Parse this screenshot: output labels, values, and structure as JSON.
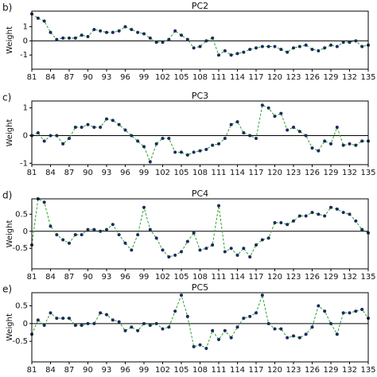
{
  "chart_data": [
    {
      "type": "line",
      "panel_label": "b)",
      "title": "PC2",
      "y_label": "Weight",
      "x": [
        81,
        82,
        83,
        84,
        85,
        86,
        87,
        88,
        89,
        90,
        91,
        92,
        93,
        94,
        95,
        96,
        97,
        98,
        99,
        100,
        101,
        102,
        103,
        104,
        105,
        106,
        107,
        108,
        109,
        110,
        111,
        112,
        113,
        114,
        115,
        116,
        117,
        118,
        119,
        120,
        121,
        122,
        123,
        124,
        125,
        126,
        127,
        128,
        129,
        130,
        131,
        132,
        133,
        134,
        135
      ],
      "series": [
        {
          "values": [
            1.9,
            1.6,
            1.4,
            0.6,
            0.1,
            0.2,
            0.2,
            0.2,
            0.4,
            0.3,
            0.8,
            0.7,
            0.6,
            0.6,
            0.7,
            1.0,
            0.8,
            0.6,
            0.5,
            0.2,
            -0.1,
            -0.1,
            0.1,
            0.7,
            0.4,
            0.1,
            -0.5,
            -0.4,
            0.0,
            0.2,
            -1.0,
            -0.7,
            -1.0,
            -0.9,
            -0.8,
            -0.6,
            -0.5,
            -0.4,
            -0.4,
            -0.4,
            -0.6,
            -0.8,
            -0.5,
            -0.4,
            -0.3,
            -0.6,
            -0.7,
            -0.5,
            -0.3,
            -0.4,
            -0.1,
            -0.1,
            0.0,
            -0.4,
            -0.3
          ],
          "color": "#2ca02c",
          "marker_color": "#1a2b5c"
        }
      ],
      "xlim": [
        81,
        135
      ],
      "xticks": [
        81,
        84,
        87,
        90,
        93,
        96,
        99,
        102,
        105,
        108,
        111,
        114,
        117,
        120,
        123,
        126,
        129,
        132,
        135
      ],
      "ylim": [
        -2,
        2.1
      ],
      "yticks": [
        -1,
        0,
        1
      ],
      "hline": 0
    },
    {
      "type": "line",
      "panel_label": "c)",
      "title": "PC3",
      "y_label": "Weight",
      "x": [
        81,
        82,
        83,
        84,
        85,
        86,
        87,
        88,
        89,
        90,
        91,
        92,
        93,
        94,
        95,
        96,
        97,
        98,
        99,
        100,
        101,
        102,
        103,
        104,
        105,
        106,
        107,
        108,
        109,
        110,
        111,
        112,
        113,
        114,
        115,
        116,
        117,
        118,
        119,
        120,
        121,
        122,
        123,
        124,
        125,
        126,
        127,
        128,
        129,
        130,
        131,
        132,
        133,
        134,
        135
      ],
      "series": [
        {
          "values": [
            0.0,
            0.1,
            -0.2,
            0.0,
            0.0,
            -0.3,
            -0.1,
            0.3,
            0.3,
            0.4,
            0.3,
            0.3,
            0.6,
            0.55,
            0.4,
            0.2,
            0.0,
            -0.2,
            -0.4,
            -0.95,
            -0.3,
            -0.1,
            -0.1,
            -0.6,
            -0.6,
            -0.7,
            -0.6,
            -0.55,
            -0.5,
            -0.35,
            -0.3,
            -0.1,
            0.4,
            0.5,
            0.1,
            0.0,
            -0.1,
            1.1,
            1.0,
            0.7,
            0.8,
            0.2,
            0.3,
            0.15,
            0.0,
            -0.45,
            -0.55,
            -0.2,
            -0.3,
            0.3,
            -0.35,
            -0.3,
            -0.35,
            -0.2,
            -0.2
          ],
          "color": "#2ca02c",
          "marker_color": "#1a2b5c"
        }
      ],
      "xlim": [
        81,
        135
      ],
      "xticks": [
        81,
        84,
        87,
        90,
        93,
        96,
        99,
        102,
        105,
        108,
        111,
        114,
        117,
        120,
        123,
        126,
        129,
        132,
        135
      ],
      "ylim": [
        -1.05,
        1.25
      ],
      "yticks": [
        -1,
        0,
        1
      ],
      "hline": 0
    },
    {
      "type": "line",
      "panel_label": "d)",
      "title": "PC4",
      "y_label": "Weight",
      "x": [
        81,
        82,
        83,
        84,
        85,
        86,
        87,
        88,
        89,
        90,
        91,
        92,
        93,
        94,
        95,
        96,
        97,
        98,
        99,
        100,
        101,
        102,
        103,
        104,
        105,
        106,
        107,
        108,
        109,
        110,
        111,
        112,
        113,
        114,
        115,
        116,
        117,
        118,
        119,
        120,
        121,
        122,
        123,
        124,
        125,
        126,
        127,
        128,
        129,
        130,
        131,
        132,
        133,
        134,
        135
      ],
      "series": [
        {
          "values": [
            -0.4,
            0.95,
            0.85,
            0.15,
            -0.1,
            -0.25,
            -0.35,
            -0.1,
            -0.1,
            0.05,
            0.05,
            0.0,
            0.05,
            0.2,
            -0.1,
            -0.35,
            -0.55,
            -0.1,
            0.7,
            0.05,
            -0.2,
            -0.55,
            -0.75,
            -0.7,
            -0.6,
            -0.3,
            -0.05,
            -0.55,
            -0.5,
            -0.4,
            0.75,
            -0.6,
            -0.5,
            -0.7,
            -0.5,
            -0.75,
            -0.4,
            -0.25,
            -0.2,
            0.25,
            0.25,
            0.2,
            0.3,
            0.45,
            0.45,
            0.55,
            0.5,
            0.45,
            0.7,
            0.65,
            0.55,
            0.5,
            0.3,
            0.05,
            -0.05
          ],
          "color": "#2ca02c",
          "marker_color": "#1a2b5c"
        }
      ],
      "xlim": [
        81,
        135
      ],
      "xticks": [
        81,
        84,
        87,
        90,
        93,
        96,
        99,
        102,
        105,
        108,
        111,
        114,
        117,
        120,
        123,
        126,
        129,
        132,
        135
      ],
      "ylim": [
        -1.1,
        0.95
      ],
      "yticks": [
        -0.5,
        0,
        0.5
      ],
      "hline": 0
    },
    {
      "type": "line",
      "panel_label": "e)",
      "title": "PC5",
      "y_label": "Weight",
      "x": [
        81,
        82,
        83,
        84,
        85,
        86,
        87,
        88,
        89,
        90,
        91,
        92,
        93,
        94,
        95,
        96,
        97,
        98,
        99,
        100,
        101,
        102,
        103,
        104,
        105,
        106,
        107,
        108,
        109,
        110,
        111,
        112,
        113,
        114,
        115,
        116,
        117,
        118,
        119,
        120,
        121,
        122,
        123,
        124,
        125,
        126,
        127,
        128,
        129,
        130,
        131,
        132,
        133,
        134,
        135
      ],
      "series": [
        {
          "values": [
            -0.3,
            0.1,
            -0.05,
            0.3,
            0.15,
            0.15,
            0.15,
            -0.05,
            -0.05,
            0.0,
            0.0,
            0.3,
            0.25,
            0.1,
            0.05,
            -0.2,
            -0.1,
            -0.2,
            0.0,
            -0.05,
            0.0,
            -0.15,
            -0.1,
            0.35,
            0.8,
            0.2,
            -0.65,
            -0.6,
            -0.7,
            -0.2,
            -0.45,
            -0.2,
            -0.4,
            -0.1,
            0.15,
            0.2,
            0.3,
            0.8,
            0.0,
            -0.15,
            -0.15,
            -0.4,
            -0.35,
            -0.4,
            -0.3,
            -0.1,
            0.5,
            0.35,
            0.0,
            -0.3,
            0.3,
            0.3,
            0.35,
            0.4,
            0.15
          ],
          "color": "#2ca02c",
          "marker_color": "#1a2b5c"
        }
      ],
      "xlim": [
        81,
        135
      ],
      "xticks": [
        81,
        84,
        87,
        90,
        93,
        96,
        99,
        102,
        105,
        108,
        111,
        114,
        117,
        120,
        123,
        126,
        129,
        132,
        135
      ],
      "ylim": [
        -1.08,
        0.87
      ],
      "yticks": [
        -0.5,
        0,
        0.5
      ],
      "hline": 0
    }
  ]
}
